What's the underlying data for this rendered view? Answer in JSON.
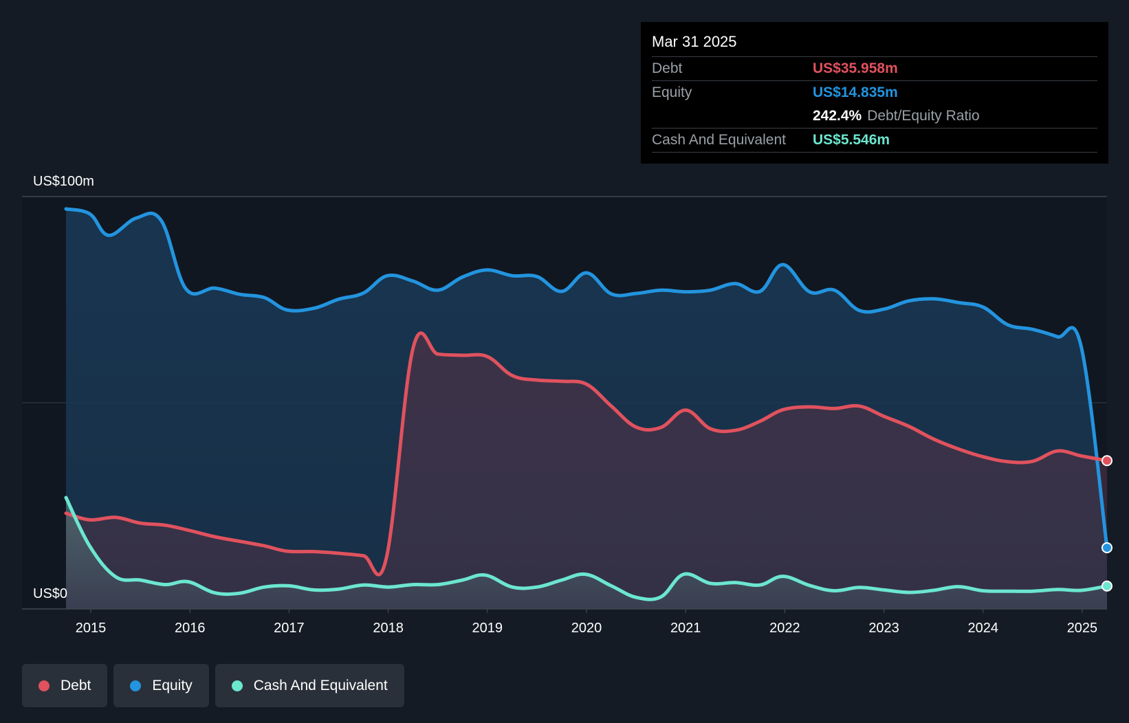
{
  "tooltip": {
    "date": "Mar 31 2025",
    "debt_label": "Debt",
    "debt_value": "US$35.958m",
    "equity_label": "Equity",
    "equity_value": "US$14.835m",
    "ratio_value": "242.4%",
    "ratio_label": "Debt/Equity Ratio",
    "cash_label": "Cash And Equivalent",
    "cash_value": "US$5.546m"
  },
  "legend": {
    "debt": "Debt",
    "equity": "Equity",
    "cash": "Cash And Equivalent"
  },
  "colors": {
    "debt": "#e0525e",
    "equity": "#2394df",
    "cash": "#6ce6cf",
    "background": "#151b24"
  },
  "chart_data": {
    "type": "area",
    "title": "",
    "y_top_label": "US$100m",
    "y_bottom_label": "US$0",
    "ylim": [
      0,
      100
    ],
    "xlim": [
      2014.75,
      2025.25
    ],
    "x_ticks": [
      "2015",
      "2016",
      "2017",
      "2018",
      "2019",
      "2020",
      "2021",
      "2022",
      "2023",
      "2024",
      "2025"
    ],
    "grid": true,
    "legend_position": "bottom-left",
    "series": [
      {
        "name": "Equity",
        "key": "equity",
        "points": [
          [
            2014.75,
            97.0
          ],
          [
            2014.99,
            95.8
          ],
          [
            2015.18,
            90.6
          ],
          [
            2015.46,
            94.8
          ],
          [
            2015.71,
            94.2
          ],
          [
            2015.96,
            77.6
          ],
          [
            2016.25,
            77.8
          ],
          [
            2016.5,
            76.3
          ],
          [
            2016.75,
            75.5
          ],
          [
            2016.98,
            72.5
          ],
          [
            2017.25,
            72.9
          ],
          [
            2017.5,
            75.1
          ],
          [
            2017.75,
            76.6
          ],
          [
            2017.99,
            80.8
          ],
          [
            2018.25,
            79.5
          ],
          [
            2018.5,
            77.3
          ],
          [
            2018.75,
            80.5
          ],
          [
            2019.0,
            82.2
          ],
          [
            2019.25,
            80.8
          ],
          [
            2019.5,
            80.6
          ],
          [
            2019.75,
            77.0
          ],
          [
            2020.0,
            81.5
          ],
          [
            2020.25,
            76.4
          ],
          [
            2020.5,
            76.5
          ],
          [
            2020.75,
            77.3
          ],
          [
            2021.0,
            76.9
          ],
          [
            2021.25,
            77.3
          ],
          [
            2021.5,
            78.9
          ],
          [
            2021.75,
            77.0
          ],
          [
            2021.98,
            83.5
          ],
          [
            2022.25,
            76.9
          ],
          [
            2022.5,
            77.3
          ],
          [
            2022.75,
            72.4
          ],
          [
            2023.0,
            72.7
          ],
          [
            2023.25,
            74.7
          ],
          [
            2023.5,
            75.2
          ],
          [
            2023.75,
            74.3
          ],
          [
            2024.0,
            73.2
          ],
          [
            2024.25,
            68.9
          ],
          [
            2024.5,
            67.8
          ],
          [
            2024.75,
            66.0
          ],
          [
            2024.99,
            63.6
          ],
          [
            2025.25,
            14.835
          ]
        ]
      },
      {
        "name": "Debt",
        "key": "debt",
        "points": [
          [
            2014.75,
            23.2
          ],
          [
            2014.99,
            21.6
          ],
          [
            2015.25,
            22.2
          ],
          [
            2015.5,
            20.8
          ],
          [
            2015.75,
            20.3
          ],
          [
            2016.0,
            19.0
          ],
          [
            2016.25,
            17.5
          ],
          [
            2016.5,
            16.4
          ],
          [
            2016.75,
            15.3
          ],
          [
            2016.98,
            14.0
          ],
          [
            2017.25,
            13.9
          ],
          [
            2017.5,
            13.5
          ],
          [
            2017.75,
            12.9
          ],
          [
            2017.98,
            12.2
          ],
          [
            2018.25,
            63.2
          ],
          [
            2018.5,
            61.8
          ],
          [
            2018.75,
            61.5
          ],
          [
            2019.0,
            61.2
          ],
          [
            2019.25,
            56.6
          ],
          [
            2019.5,
            55.5
          ],
          [
            2019.75,
            55.2
          ],
          [
            2020.0,
            54.5
          ],
          [
            2020.25,
            49.2
          ],
          [
            2020.5,
            44.1
          ],
          [
            2020.75,
            44.0
          ],
          [
            2021.0,
            48.2
          ],
          [
            2021.25,
            43.7
          ],
          [
            2021.5,
            43.3
          ],
          [
            2021.75,
            45.5
          ],
          [
            2021.98,
            48.3
          ],
          [
            2022.25,
            49.0
          ],
          [
            2022.5,
            48.6
          ],
          [
            2022.75,
            49.2
          ],
          [
            2023.0,
            46.7
          ],
          [
            2023.25,
            44.3
          ],
          [
            2023.5,
            41.2
          ],
          [
            2023.75,
            38.8
          ],
          [
            2024.0,
            36.9
          ],
          [
            2024.25,
            35.7
          ],
          [
            2024.5,
            35.8
          ],
          [
            2024.75,
            38.3
          ],
          [
            2024.99,
            37.1
          ],
          [
            2025.25,
            35.958
          ]
        ]
      },
      {
        "name": "Cash And Equivalent",
        "key": "cash",
        "points": [
          [
            2014.75,
            27.0
          ],
          [
            2014.99,
            15.2
          ],
          [
            2015.25,
            7.8
          ],
          [
            2015.5,
            7.0
          ],
          [
            2015.75,
            5.9
          ],
          [
            2015.98,
            6.6
          ],
          [
            2016.25,
            3.9
          ],
          [
            2016.5,
            3.8
          ],
          [
            2016.75,
            5.3
          ],
          [
            2017.0,
            5.6
          ],
          [
            2017.25,
            4.6
          ],
          [
            2017.5,
            4.8
          ],
          [
            2017.75,
            5.8
          ],
          [
            2018.0,
            5.3
          ],
          [
            2018.25,
            5.9
          ],
          [
            2018.5,
            5.9
          ],
          [
            2018.75,
            7.0
          ],
          [
            2018.98,
            8.2
          ],
          [
            2019.25,
            5.3
          ],
          [
            2019.5,
            5.3
          ],
          [
            2019.75,
            7.0
          ],
          [
            2019.99,
            8.4
          ],
          [
            2020.25,
            5.6
          ],
          [
            2020.5,
            2.8
          ],
          [
            2020.75,
            2.9
          ],
          [
            2020.98,
            8.4
          ],
          [
            2021.25,
            6.2
          ],
          [
            2021.5,
            6.4
          ],
          [
            2021.75,
            5.8
          ],
          [
            2021.98,
            7.9
          ],
          [
            2022.25,
            5.7
          ],
          [
            2022.5,
            4.4
          ],
          [
            2022.75,
            5.2
          ],
          [
            2023.0,
            4.6
          ],
          [
            2023.25,
            4.0
          ],
          [
            2023.5,
            4.5
          ],
          [
            2023.75,
            5.4
          ],
          [
            2024.0,
            4.4
          ],
          [
            2024.25,
            4.3
          ],
          [
            2024.5,
            4.3
          ],
          [
            2024.75,
            4.7
          ],
          [
            2024.99,
            4.5
          ],
          [
            2025.25,
            5.546
          ]
        ]
      }
    ]
  }
}
